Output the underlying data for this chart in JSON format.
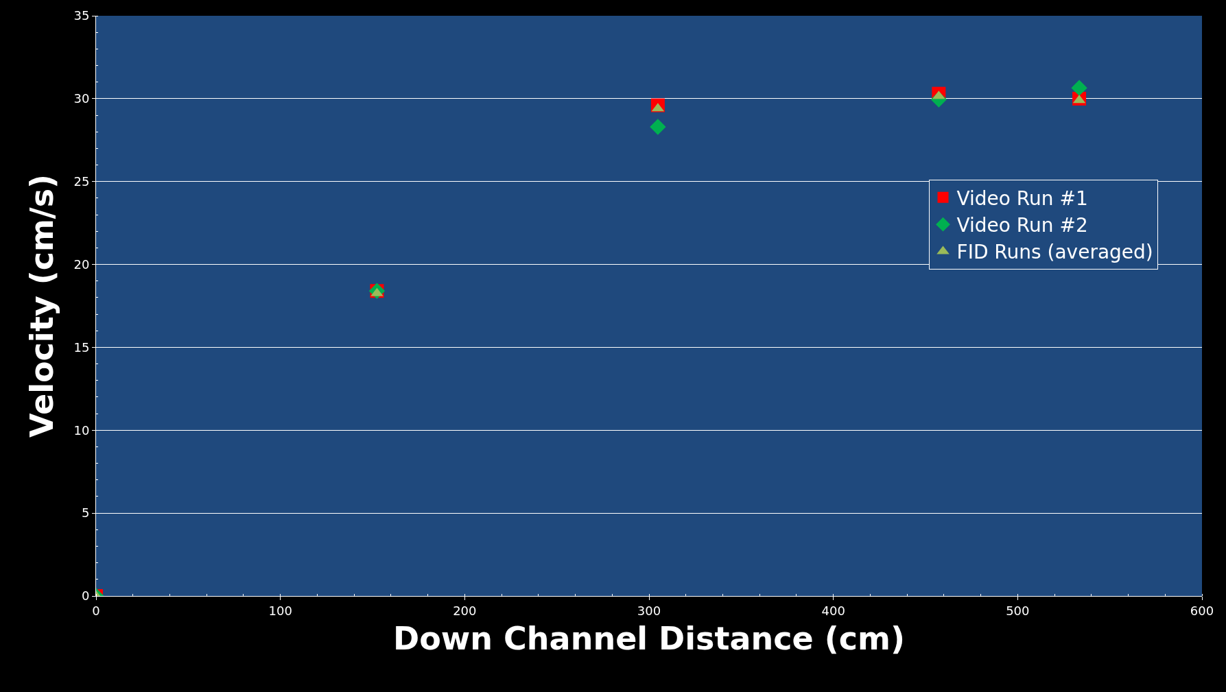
{
  "chart_data": {
    "type": "scatter",
    "xlabel": "Down Channel Distance (cm)",
    "ylabel": "Velocity (cm/s)",
    "xlim": [
      0,
      600
    ],
    "xticks": [
      0,
      100,
      200,
      300,
      400,
      500,
      600
    ],
    "ylim": [
      0,
      35
    ],
    "yticks": [
      0,
      5,
      10,
      15,
      20,
      25,
      30,
      35
    ],
    "grid": "y",
    "legend": "right",
    "series": [
      {
        "name": "Video Run #1",
        "color": "#ff0000",
        "marker": "square",
        "x": [
          0,
          152.4,
          304.8,
          457.2,
          533.4
        ],
        "values": [
          0,
          18.4,
          29.6,
          30.3,
          30.0
        ]
      },
      {
        "name": "Video Run #2",
        "color": "#00b050",
        "marker": "diamond",
        "x": [
          0,
          152.4,
          304.8,
          457.2,
          533.4
        ],
        "values": [
          0,
          18.4,
          28.3,
          29.95,
          30.65
        ]
      },
      {
        "name": "FID Runs (averaged)",
        "color": "#9bbb59",
        "marker": "triangle",
        "x": [
          0,
          152.4,
          304.8,
          457.2,
          533.4
        ],
        "values": [
          0,
          18.25,
          29.4,
          30.15,
          29.9
        ]
      }
    ]
  }
}
